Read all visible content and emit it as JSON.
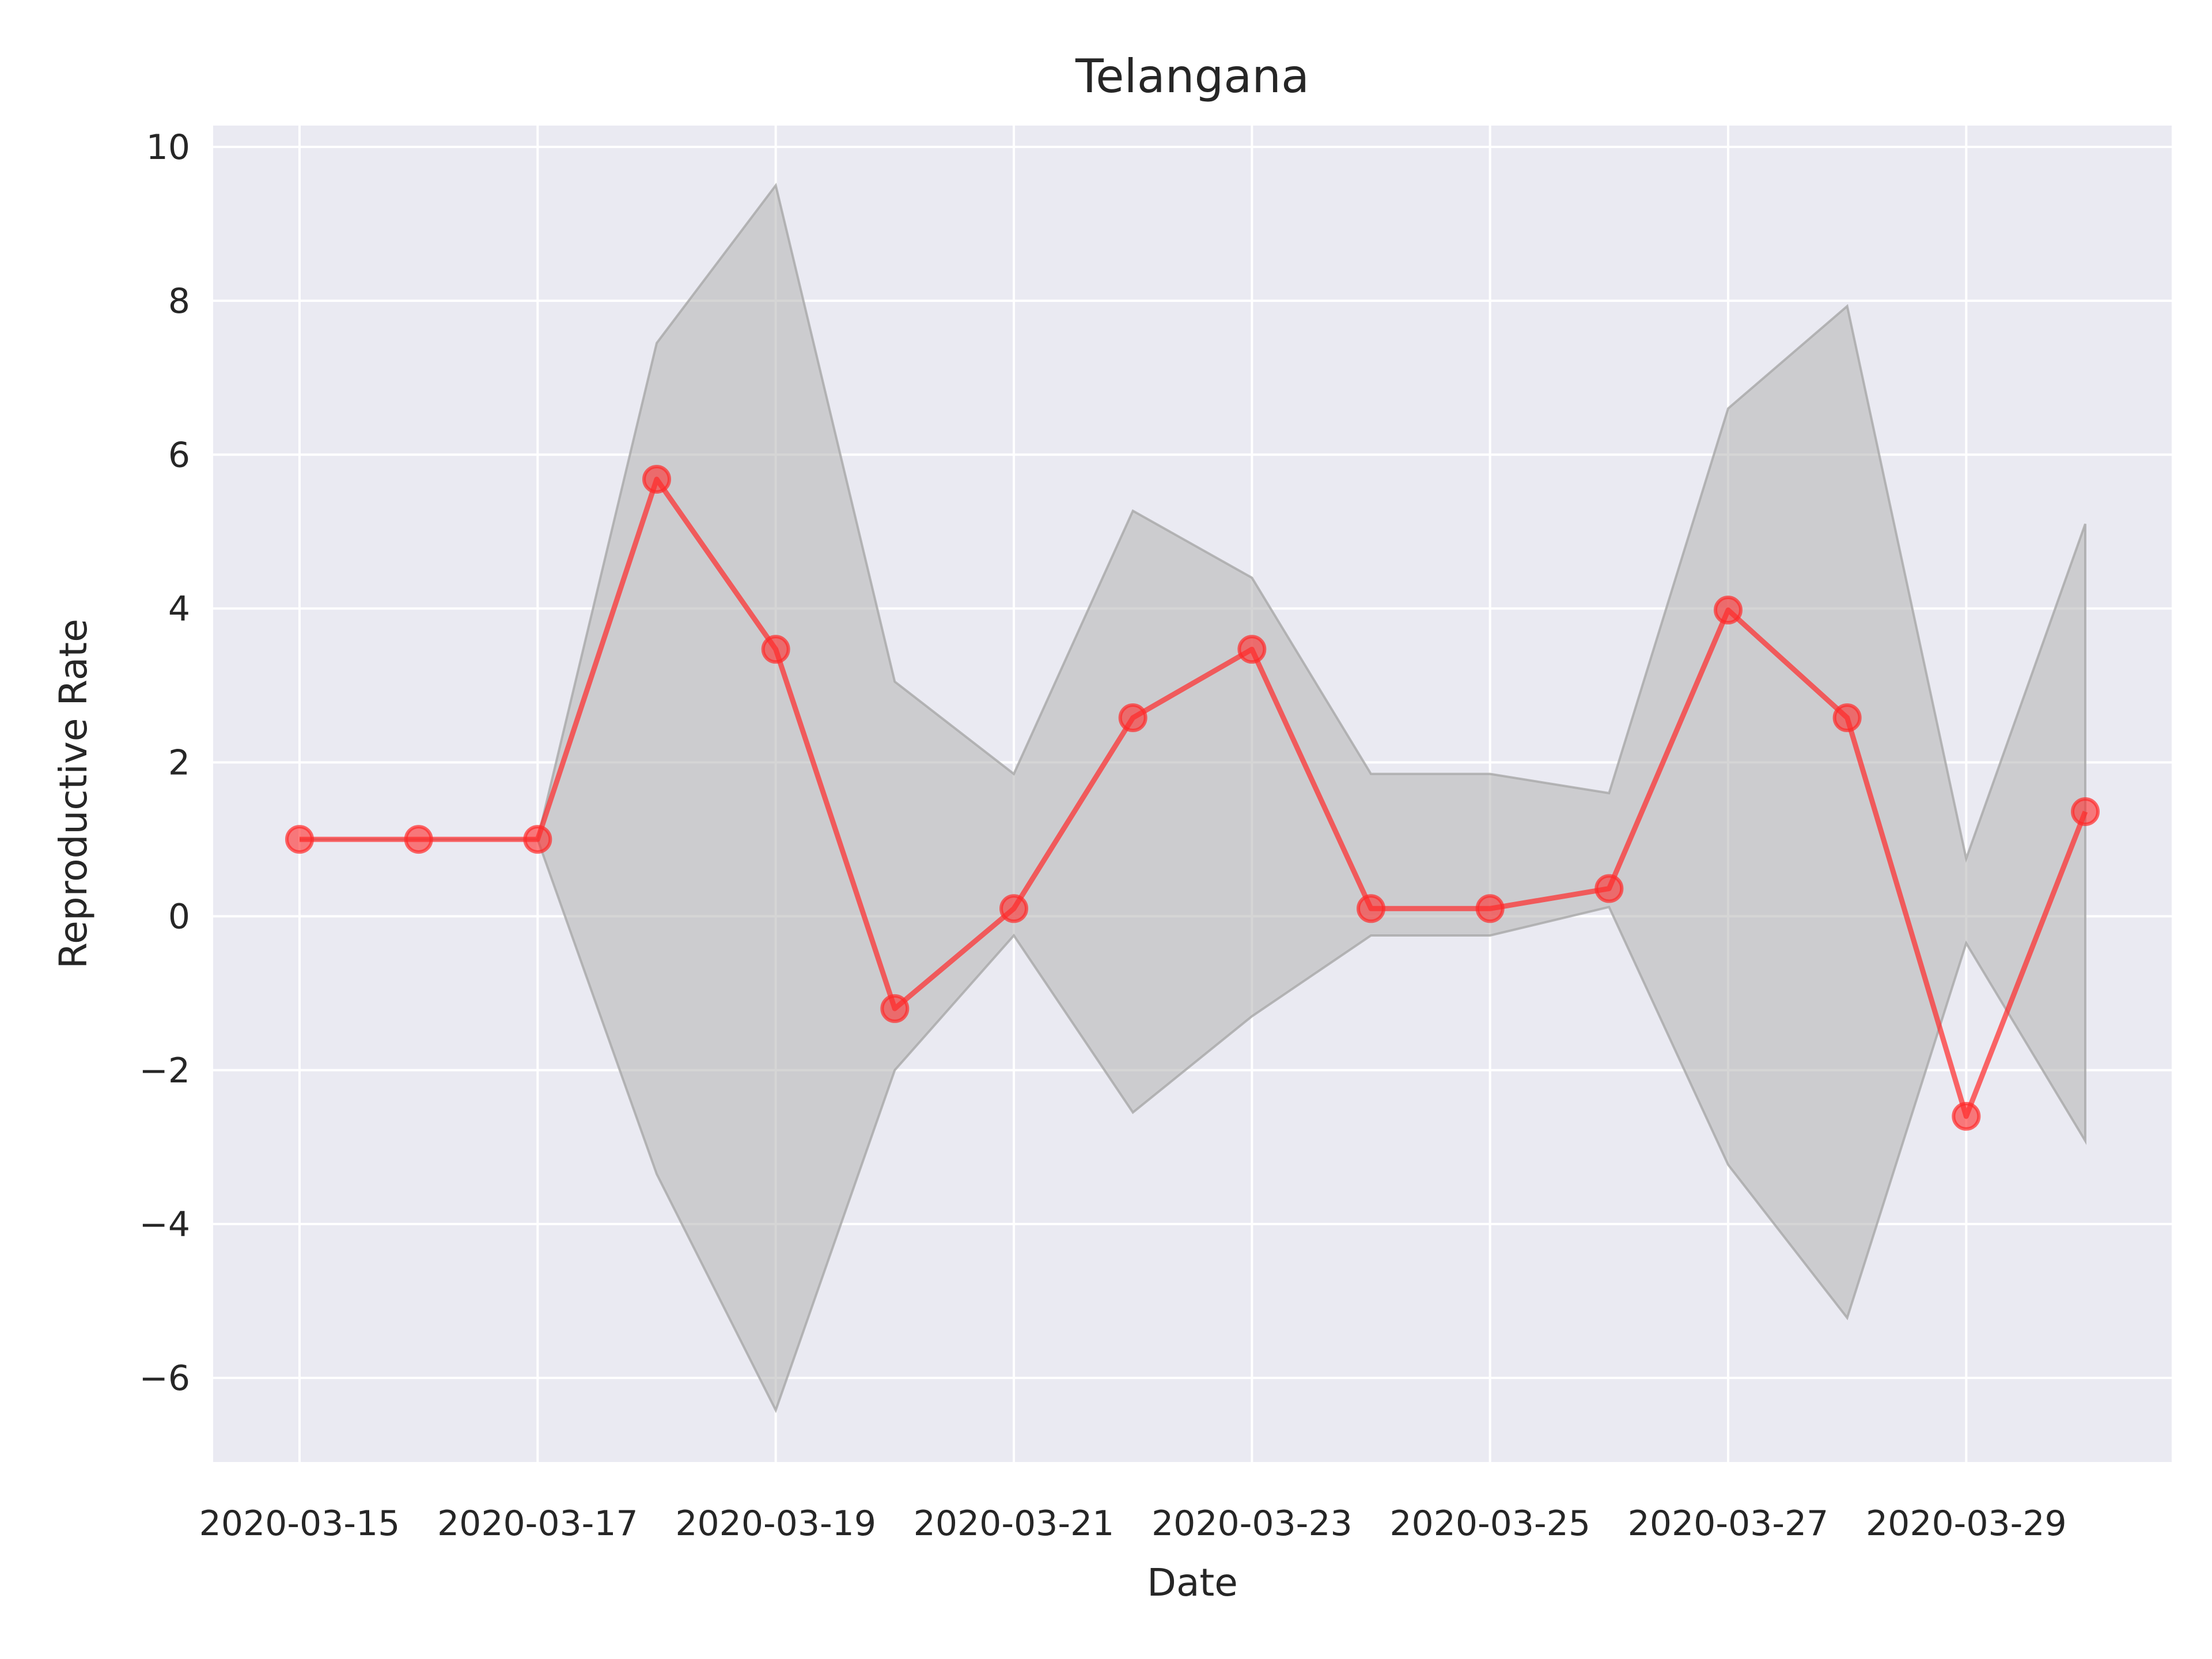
{
  "chart_data": {
    "type": "line",
    "title": "Telangana",
    "xlabel": "Date",
    "ylabel": "Reproductive Rate",
    "x": [
      "2020-03-15",
      "2020-03-16",
      "2020-03-17",
      "2020-03-18",
      "2020-03-19",
      "2020-03-20",
      "2020-03-21",
      "2020-03-22",
      "2020-03-23",
      "2020-03-24",
      "2020-03-25",
      "2020-03-26",
      "2020-03-27",
      "2020-03-28",
      "2020-03-29",
      "2020-03-30"
    ],
    "x_tick_labels": [
      "2020-03-15",
      "2020-03-17",
      "2020-03-19",
      "2020-03-21",
      "2020-03-23",
      "2020-03-25",
      "2020-03-27",
      "2020-03-29"
    ],
    "y_ticks": [
      10,
      8,
      6,
      4,
      2,
      0,
      -2,
      -4,
      -6
    ],
    "y_tick_labels": [
      "10",
      "8",
      "6",
      "4",
      "2",
      "0",
      "−2",
      "−4",
      "−6"
    ],
    "ylim": [
      -7.2,
      10.3
    ],
    "grid": true,
    "series": [
      {
        "values": [
          1.0,
          1.0,
          1.0,
          5.68,
          3.47,
          -1.2,
          0.1,
          2.58,
          3.47,
          0.1,
          0.1,
          0.36,
          3.98,
          2.58,
          -2.6,
          1.36
        ],
        "color": "#ff2a2a"
      }
    ],
    "band": {
      "upper": [
        1.0,
        1.0,
        1.0,
        7.45,
        9.5,
        3.05,
        1.85,
        5.27,
        4.4,
        1.85,
        1.85,
        1.6,
        6.6,
        7.93,
        0.75,
        5.1
      ],
      "lower": [
        1.0,
        1.0,
        1.0,
        -3.35,
        -6.42,
        -2.0,
        -0.25,
        -2.55,
        -1.3,
        -0.25,
        -0.25,
        0.12,
        -3.23,
        -5.22,
        -0.35,
        -2.92
      ],
      "color": "#b3b3b3"
    },
    "colors": {
      "plot_bg": "#eaeaf2",
      "grid": "#ffffff",
      "line": "#ff2a2a",
      "band": "#b3b3b3"
    }
  }
}
